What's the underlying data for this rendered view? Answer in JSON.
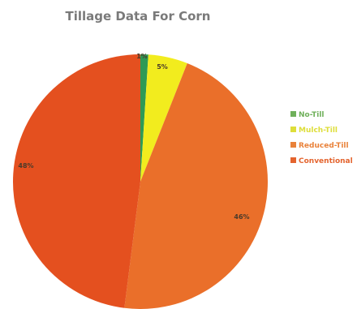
{
  "chart_data": {
    "type": "pie",
    "title": "Tillage Data For Corn",
    "start_angle_deg": 0,
    "direction": "clockwise",
    "legend_position": "right",
    "slices": [
      {
        "name": "No-Till",
        "value": 1,
        "label": "1%",
        "color": "#2e9a55",
        "legend_color": "#6fb05a"
      },
      {
        "name": "Mulch-Till",
        "value": 5,
        "label": "5%",
        "color": "#f2ec1e",
        "legend_color": "#dede3a"
      },
      {
        "name": "Reduced-Till",
        "value": 46,
        "label": "46%",
        "color": "#ea6f2a",
        "legend_color": "#e9823a"
      },
      {
        "name": "Conventional",
        "value": 48,
        "label": "48%",
        "color": "#e4501f",
        "legend_color": "#e4642e"
      }
    ]
  }
}
